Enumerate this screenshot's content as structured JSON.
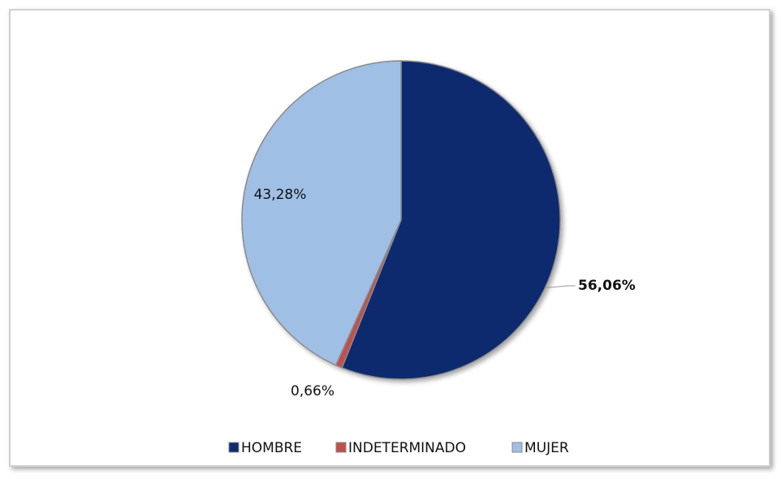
{
  "chart_data": {
    "type": "pie",
    "categories": [
      "HOMBRE",
      "INDETERMINADO",
      "MUJER"
    ],
    "values": [
      56.06,
      0.66,
      43.28
    ],
    "value_labels": [
      "56,06%",
      "0,66%",
      "43,28%"
    ],
    "colors": [
      "#0d2c6e",
      "#c0504d",
      "#9fbfe5"
    ],
    "legend": "bottom"
  }
}
